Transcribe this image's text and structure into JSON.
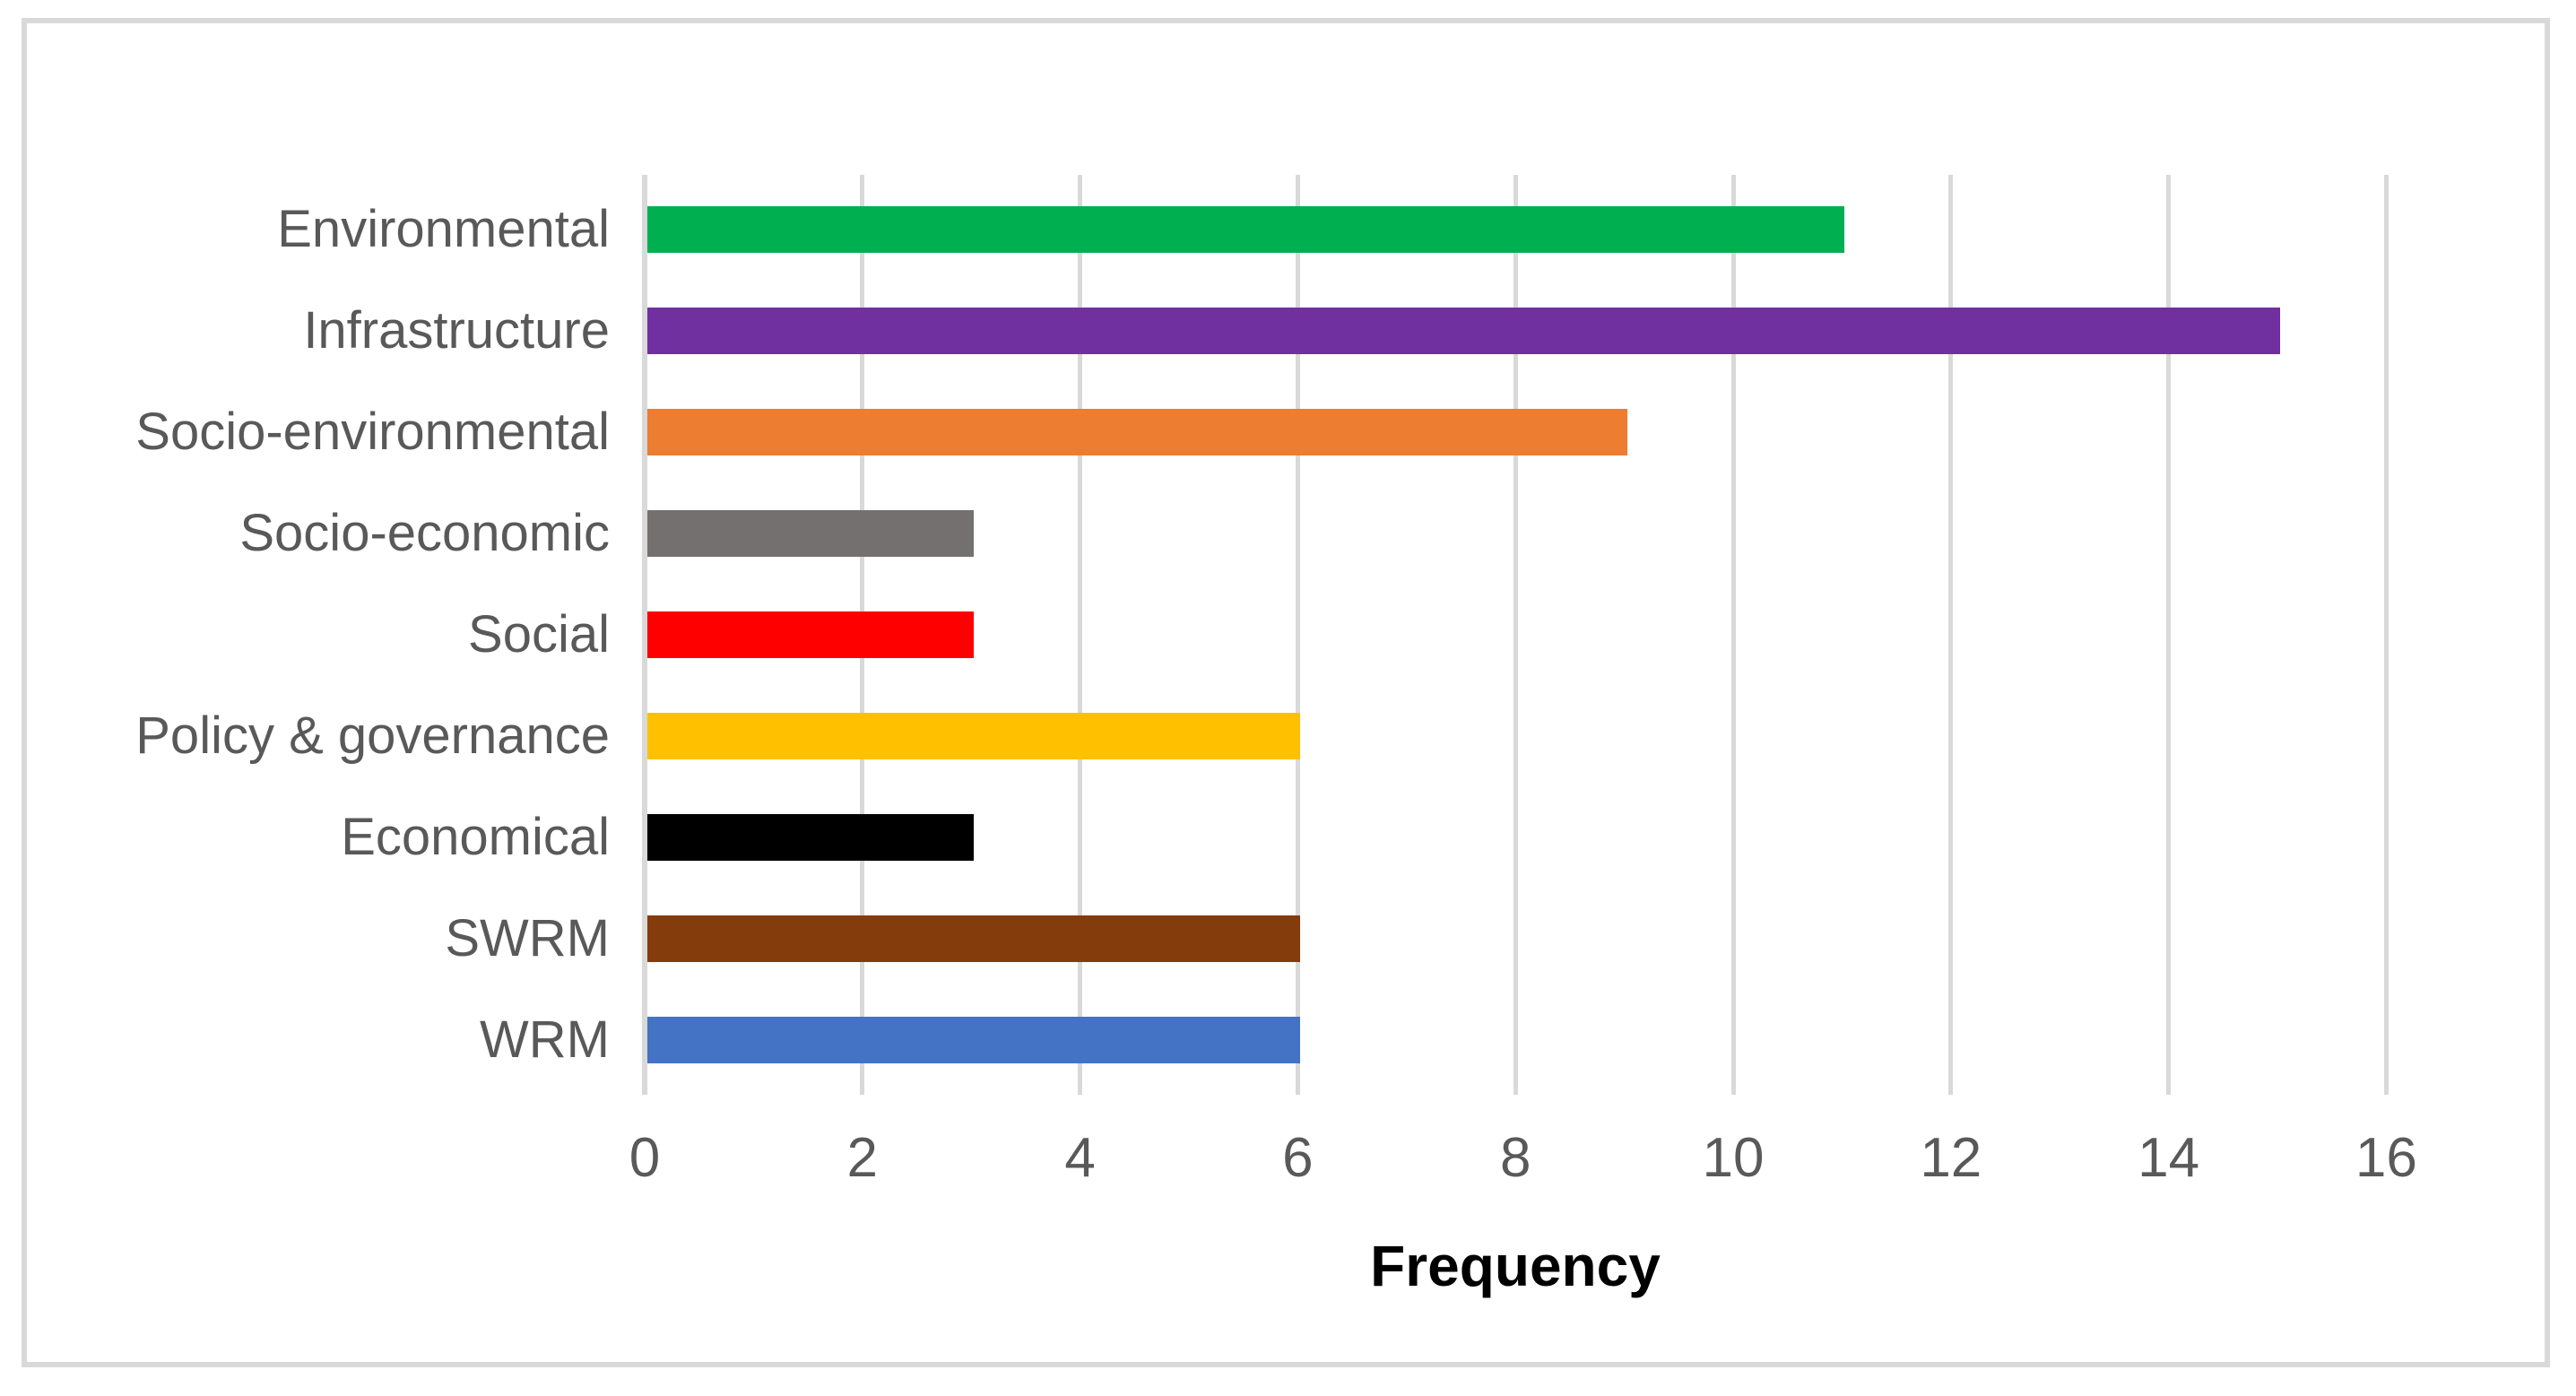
{
  "chart_data": {
    "type": "bar",
    "orientation": "horizontal",
    "title": "",
    "xlabel": "Frequency",
    "ylabel": "",
    "categories": [
      "Environmental",
      "Infrastructure",
      "Socio-environmental",
      "Socio-economic",
      "Social",
      "Policy & governance",
      "Economical",
      "SWRM",
      "WRM"
    ],
    "values": [
      11,
      15,
      9,
      3,
      3,
      6,
      3,
      6,
      6
    ],
    "bar_colors": [
      "#00B050",
      "#7030A0",
      "#ED7D31",
      "#757070",
      "#FF0000",
      "#FFC000",
      "#000000",
      "#843C0C",
      "#4472C4"
    ],
    "xlim": [
      0,
      16
    ],
    "xticks": [
      0,
      2,
      4,
      6,
      8,
      10,
      12,
      14,
      16
    ],
    "grid": true,
    "legend": false
  },
  "colors": {
    "gridline": "#D9D9D9",
    "axis_line": "#D9D9D9",
    "tick_text": "#595959",
    "category_text": "#595959",
    "xlabel_text": "#000000",
    "figure_border": "#D9D9D9",
    "background": "#FFFFFF"
  }
}
